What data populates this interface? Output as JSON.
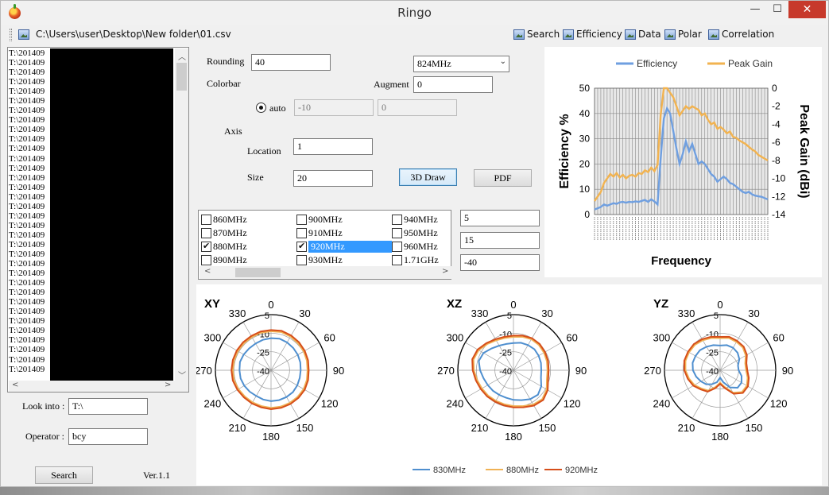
{
  "window": {
    "title": "Ringo",
    "minimize_glyph": "—",
    "maximize_glyph": "☐",
    "close_glyph": "✕"
  },
  "pathbar": {
    "path": "C:\\Users\\user\\Desktop\\New folder\\01.csv"
  },
  "toolbar": [
    {
      "label": "Search",
      "icon": "search-icon"
    },
    {
      "label": "Efficiency",
      "icon": "efficiency-icon"
    },
    {
      "label": "Data",
      "icon": "data-icon"
    },
    {
      "label": "Polar",
      "icon": "polar-icon"
    },
    {
      "label": "Correlation",
      "icon": "correlation-icon"
    }
  ],
  "file_list": {
    "items": [
      "T:\\201409",
      "T:\\201409",
      "T:\\201409",
      "T:\\201409",
      "T:\\201409",
      "T:\\201409",
      "T:\\201409",
      "T:\\201409",
      "T:\\201409",
      "T:\\201409",
      "T:\\201409",
      "T:\\201409",
      "T:\\201409",
      "T:\\201409",
      "T:\\201409",
      "T:\\201409",
      "T:\\201409",
      "T:\\201409",
      "T:\\201409",
      "T:\\201409",
      "T:\\201409",
      "T:\\201409",
      "T:\\201409",
      "T:\\201409",
      "T:\\201409",
      "T:\\201409",
      "T:\\201409",
      "T:\\201409",
      "T:\\201409",
      "T:\\201409",
      "T:\\201409",
      "T:\\201409",
      "T:\\201409",
      "T:\\201409"
    ]
  },
  "left_form": {
    "look_into_label": "Look into :",
    "look_into_value": "T:\\",
    "operator_label": "Operator :",
    "operator_value": "bcy",
    "search_button": "Search",
    "version": "Ver.1.1"
  },
  "settings": {
    "rounding_label": "Rounding",
    "rounding_value": "40",
    "frequency_selected": "824MHz",
    "colorbar_label": "Colorbar",
    "augment_label": "Augment",
    "augment_value": "0",
    "auto_label": "auto",
    "auto_selected": true,
    "colorbar_min": "-10",
    "colorbar_max": "0",
    "axis_label": "Axis",
    "location_label": "Location",
    "location_value": "1",
    "size_label": "Size",
    "size_value": "20",
    "draw3d_button": "3D Draw",
    "pdf_button": "PDF"
  },
  "freq_checklist": [
    {
      "label": "860MHz",
      "checked": false
    },
    {
      "label": "900MHz",
      "checked": false
    },
    {
      "label": "940MHz",
      "checked": false
    },
    {
      "label": "870MHz",
      "checked": false
    },
    {
      "label": "910MHz",
      "checked": false
    },
    {
      "label": "950MHz",
      "checked": false
    },
    {
      "label": "880MHz",
      "checked": true
    },
    {
      "label": "920MHz",
      "checked": true
    },
    {
      "label": "960MHz",
      "checked": false
    },
    {
      "label": "890MHz",
      "checked": false
    },
    {
      "label": "930MHz",
      "checked": false
    },
    {
      "label": "1.71GHz",
      "checked": false
    }
  ],
  "side_inputs": [
    "5",
    "15",
    "-40"
  ],
  "chart_data": [
    {
      "type": "line",
      "xlabel": "Frequency",
      "ylabel": "Efficiency %",
      "y2label": "Peak Gain (dBi)",
      "ylim": [
        0,
        50
      ],
      "y2lim": [
        -14,
        0
      ],
      "yticks": [
        0,
        10,
        20,
        30,
        40,
        50
      ],
      "y2ticks": [
        0,
        -2,
        -4,
        -6,
        -8,
        -10,
        -12,
        -14
      ],
      "legend_position": "top",
      "grid": true,
      "series": [
        {
          "name": "Efficiency",
          "axis": "left",
          "color": "#6f9fe0",
          "values": [
            2,
            2.5,
            3,
            4,
            3.5,
            4,
            4.5,
            4.2,
            4.8,
            5,
            4.7,
            5,
            4.9,
            5.2,
            5,
            5.4,
            5.8,
            5,
            6,
            5.2,
            4,
            22,
            38,
            42,
            40,
            33,
            26,
            20,
            24,
            29,
            25,
            28,
            24,
            20,
            21,
            20,
            18,
            16,
            15,
            13,
            14,
            15,
            14,
            12.5,
            12,
            11,
            10,
            9,
            8.5,
            9,
            8,
            7.5,
            7.2,
            7,
            6.5,
            6
          ]
        },
        {
          "name": "Peak Gain",
          "axis": "right",
          "color": "#f2b350",
          "values": [
            -12.5,
            -12,
            -11.5,
            -10.5,
            -10,
            -9.5,
            -9.8,
            -9.4,
            -9.9,
            -9.6,
            -10,
            -9.7,
            -9.6,
            -9.8,
            -9.4,
            -9.5,
            -9.1,
            -9.3,
            -8.8,
            -9.2,
            -8.5,
            -3,
            0,
            0,
            -0.5,
            -1,
            -2,
            -3,
            -2.5,
            -2,
            -2.3,
            -2,
            -2.2,
            -2.4,
            -3,
            -2.8,
            -3.5,
            -4,
            -3.8,
            -4.5,
            -4.3,
            -4.6,
            -5,
            -4.8,
            -5.4,
            -5.5,
            -5.8,
            -6,
            -6.2,
            -6.5,
            -6.8,
            -7,
            -7.4,
            -7.6,
            -7.8,
            -8
          ]
        }
      ]
    },
    {
      "type": "polar",
      "panels": [
        "XY",
        "XZ",
        "YZ"
      ],
      "angle_labels": [
        "0",
        "30",
        "60",
        "90",
        "120",
        "150",
        "180",
        "210",
        "240",
        "270",
        "300",
        "330"
      ],
      "radial_labels": [
        "5",
        "-10",
        "-25",
        "-40"
      ],
      "rlim": [
        -40,
        5
      ],
      "legend_position": "bottom",
      "series": [
        {
          "name": "830MHz",
          "color": "#4f8fcf"
        },
        {
          "name": "880MHz",
          "color": "#f0b255"
        },
        {
          "name": "920MHz",
          "color": "#d64e1a"
        }
      ],
      "patterns": {
        "XY": {
          "830MHz": [
            -14,
            -13.5,
            -14,
            -14.5,
            -15,
            -15.5,
            -16,
            -16,
            -15.5,
            -15,
            -15,
            -15,
            -15,
            -15.5,
            -16,
            -15.5,
            -15,
            -14.5,
            -14.5,
            -14,
            -14.5,
            -15,
            -15,
            -14.5
          ],
          "880MHz": [
            -8.5,
            -8,
            -8.5,
            -9,
            -9.5,
            -10,
            -10.5,
            -10,
            -9.5,
            -9.5,
            -9.5,
            -9.5,
            -9.5,
            -10,
            -10,
            -10,
            -9.5,
            -9,
            -9,
            -9,
            -9,
            -9,
            -9,
            -8.5
          ],
          "920MHz": [
            -7.5,
            -7,
            -7.5,
            -8,
            -8.5,
            -9,
            -9.5,
            -9,
            -8.5,
            -8.5,
            -8.5,
            -8.5,
            -8.5,
            -9,
            -9,
            -9,
            -8.5,
            -8,
            -8,
            -8,
            -8,
            -8,
            -8,
            -7.5
          ]
        },
        "XZ": {
          "830MHz": [
            -18,
            -17,
            -16.5,
            -16,
            -16.5,
            -17,
            -17.5,
            -17,
            -14,
            -12,
            -13,
            -15,
            -16,
            -17,
            -17,
            -16.5,
            -16,
            -15,
            -13,
            -11,
            -12,
            -15,
            -17,
            -18
          ],
          "880MHz": [
            -13,
            -12,
            -11,
            -11,
            -11.5,
            -12,
            -12.5,
            -12,
            -9,
            -7,
            -8,
            -10,
            -11,
            -11.5,
            -11.5,
            -11,
            -10.5,
            -9.5,
            -8,
            -6.5,
            -7.5,
            -10,
            -12,
            -13
          ],
          "920MHz": [
            -12,
            -11,
            -10,
            -10,
            -10.5,
            -11,
            -11.5,
            -11,
            -8,
            -6,
            -7,
            -9,
            -10,
            -10.5,
            -10.5,
            -10,
            -9.5,
            -8.5,
            -7,
            -5.5,
            -6.5,
            -9,
            -11,
            -12
          ]
        },
        "YZ": {
          "830MHz": [
            -20,
            -19,
            -19,
            -20,
            -22,
            -25,
            -25,
            -22,
            -20,
            -20,
            -24,
            -30,
            -34,
            -30,
            -27,
            -24,
            -22,
            -20,
            -18,
            -17,
            -17,
            -17,
            -18,
            -19
          ],
          "880MHz": [
            -14,
            -13,
            -13.5,
            -14,
            -16,
            -19,
            -19,
            -17,
            -15,
            -15,
            -19,
            -26,
            -30,
            -26,
            -21,
            -19,
            -16,
            -14,
            -12,
            -11,
            -11,
            -11,
            -12,
            -13
          ],
          "920MHz": [
            -13,
            -12,
            -12.5,
            -13,
            -15,
            -18,
            -18,
            -16,
            -14,
            -14,
            -18,
            -25,
            -29,
            -25,
            -20,
            -18,
            -15,
            -13,
            -11,
            -10,
            -10,
            -10,
            -11,
            -12
          ]
        }
      }
    }
  ],
  "colors": {
    "window_bg": "#f0f0f0",
    "selection": "#3399ff",
    "close_button": "#c7392b"
  }
}
